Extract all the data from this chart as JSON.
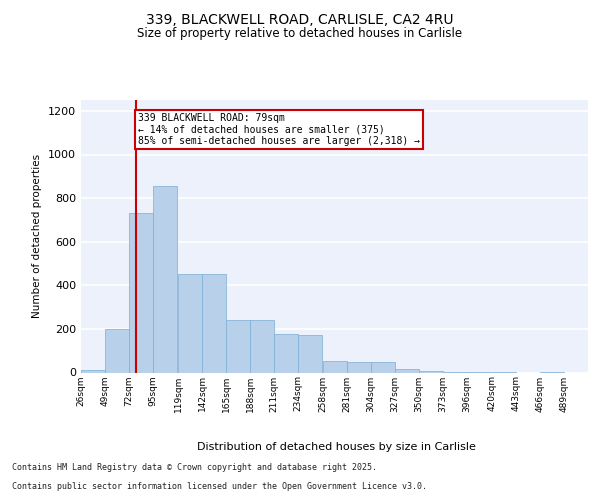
{
  "title1": "339, BLACKWELL ROAD, CARLISLE, CA2 4RU",
  "title2": "Size of property relative to detached houses in Carlisle",
  "xlabel": "Distribution of detached houses by size in Carlisle",
  "ylabel": "Number of detached properties",
  "footnote1": "Contains HM Land Registry data © Crown copyright and database right 2025.",
  "footnote2": "Contains public sector information licensed under the Open Government Licence v3.0.",
  "annotation_line1": "339 BLACKWELL ROAD: 79sqm",
  "annotation_line2": "← 14% of detached houses are smaller (375)",
  "annotation_line3": "85% of semi-detached houses are larger (2,318) →",
  "property_size": 79,
  "bin_edges": [
    26,
    49,
    72,
    95,
    119,
    142,
    165,
    188,
    211,
    234,
    258,
    281,
    304,
    327,
    350,
    373,
    396,
    420,
    443,
    466,
    489
  ],
  "bin_labels": [
    "26sqm",
    "49sqm",
    "72sqm",
    "95sqm",
    "119sqm",
    "142sqm",
    "165sqm",
    "188sqm",
    "211sqm",
    "234sqm",
    "258sqm",
    "281sqm",
    "304sqm",
    "327sqm",
    "350sqm",
    "373sqm",
    "396sqm",
    "420sqm",
    "443sqm",
    "466sqm",
    "489sqm"
  ],
  "bar_heights": [
    10,
    200,
    730,
    855,
    450,
    450,
    240,
    240,
    175,
    170,
    55,
    50,
    50,
    15,
    5,
    3,
    2,
    2,
    0,
    2,
    0
  ],
  "bar_color": "#b8d0ea",
  "bar_edge_color": "#7aafd4",
  "vline_color": "#cc0000",
  "vline_x": 79,
  "annotation_box_color": "#cc0000",
  "ylim": [
    0,
    1250
  ],
  "yticks": [
    0,
    200,
    400,
    600,
    800,
    1000,
    1200
  ],
  "bg_color": "#edf1fb",
  "grid_color": "#ffffff",
  "fig_bg_color": "#ffffff"
}
